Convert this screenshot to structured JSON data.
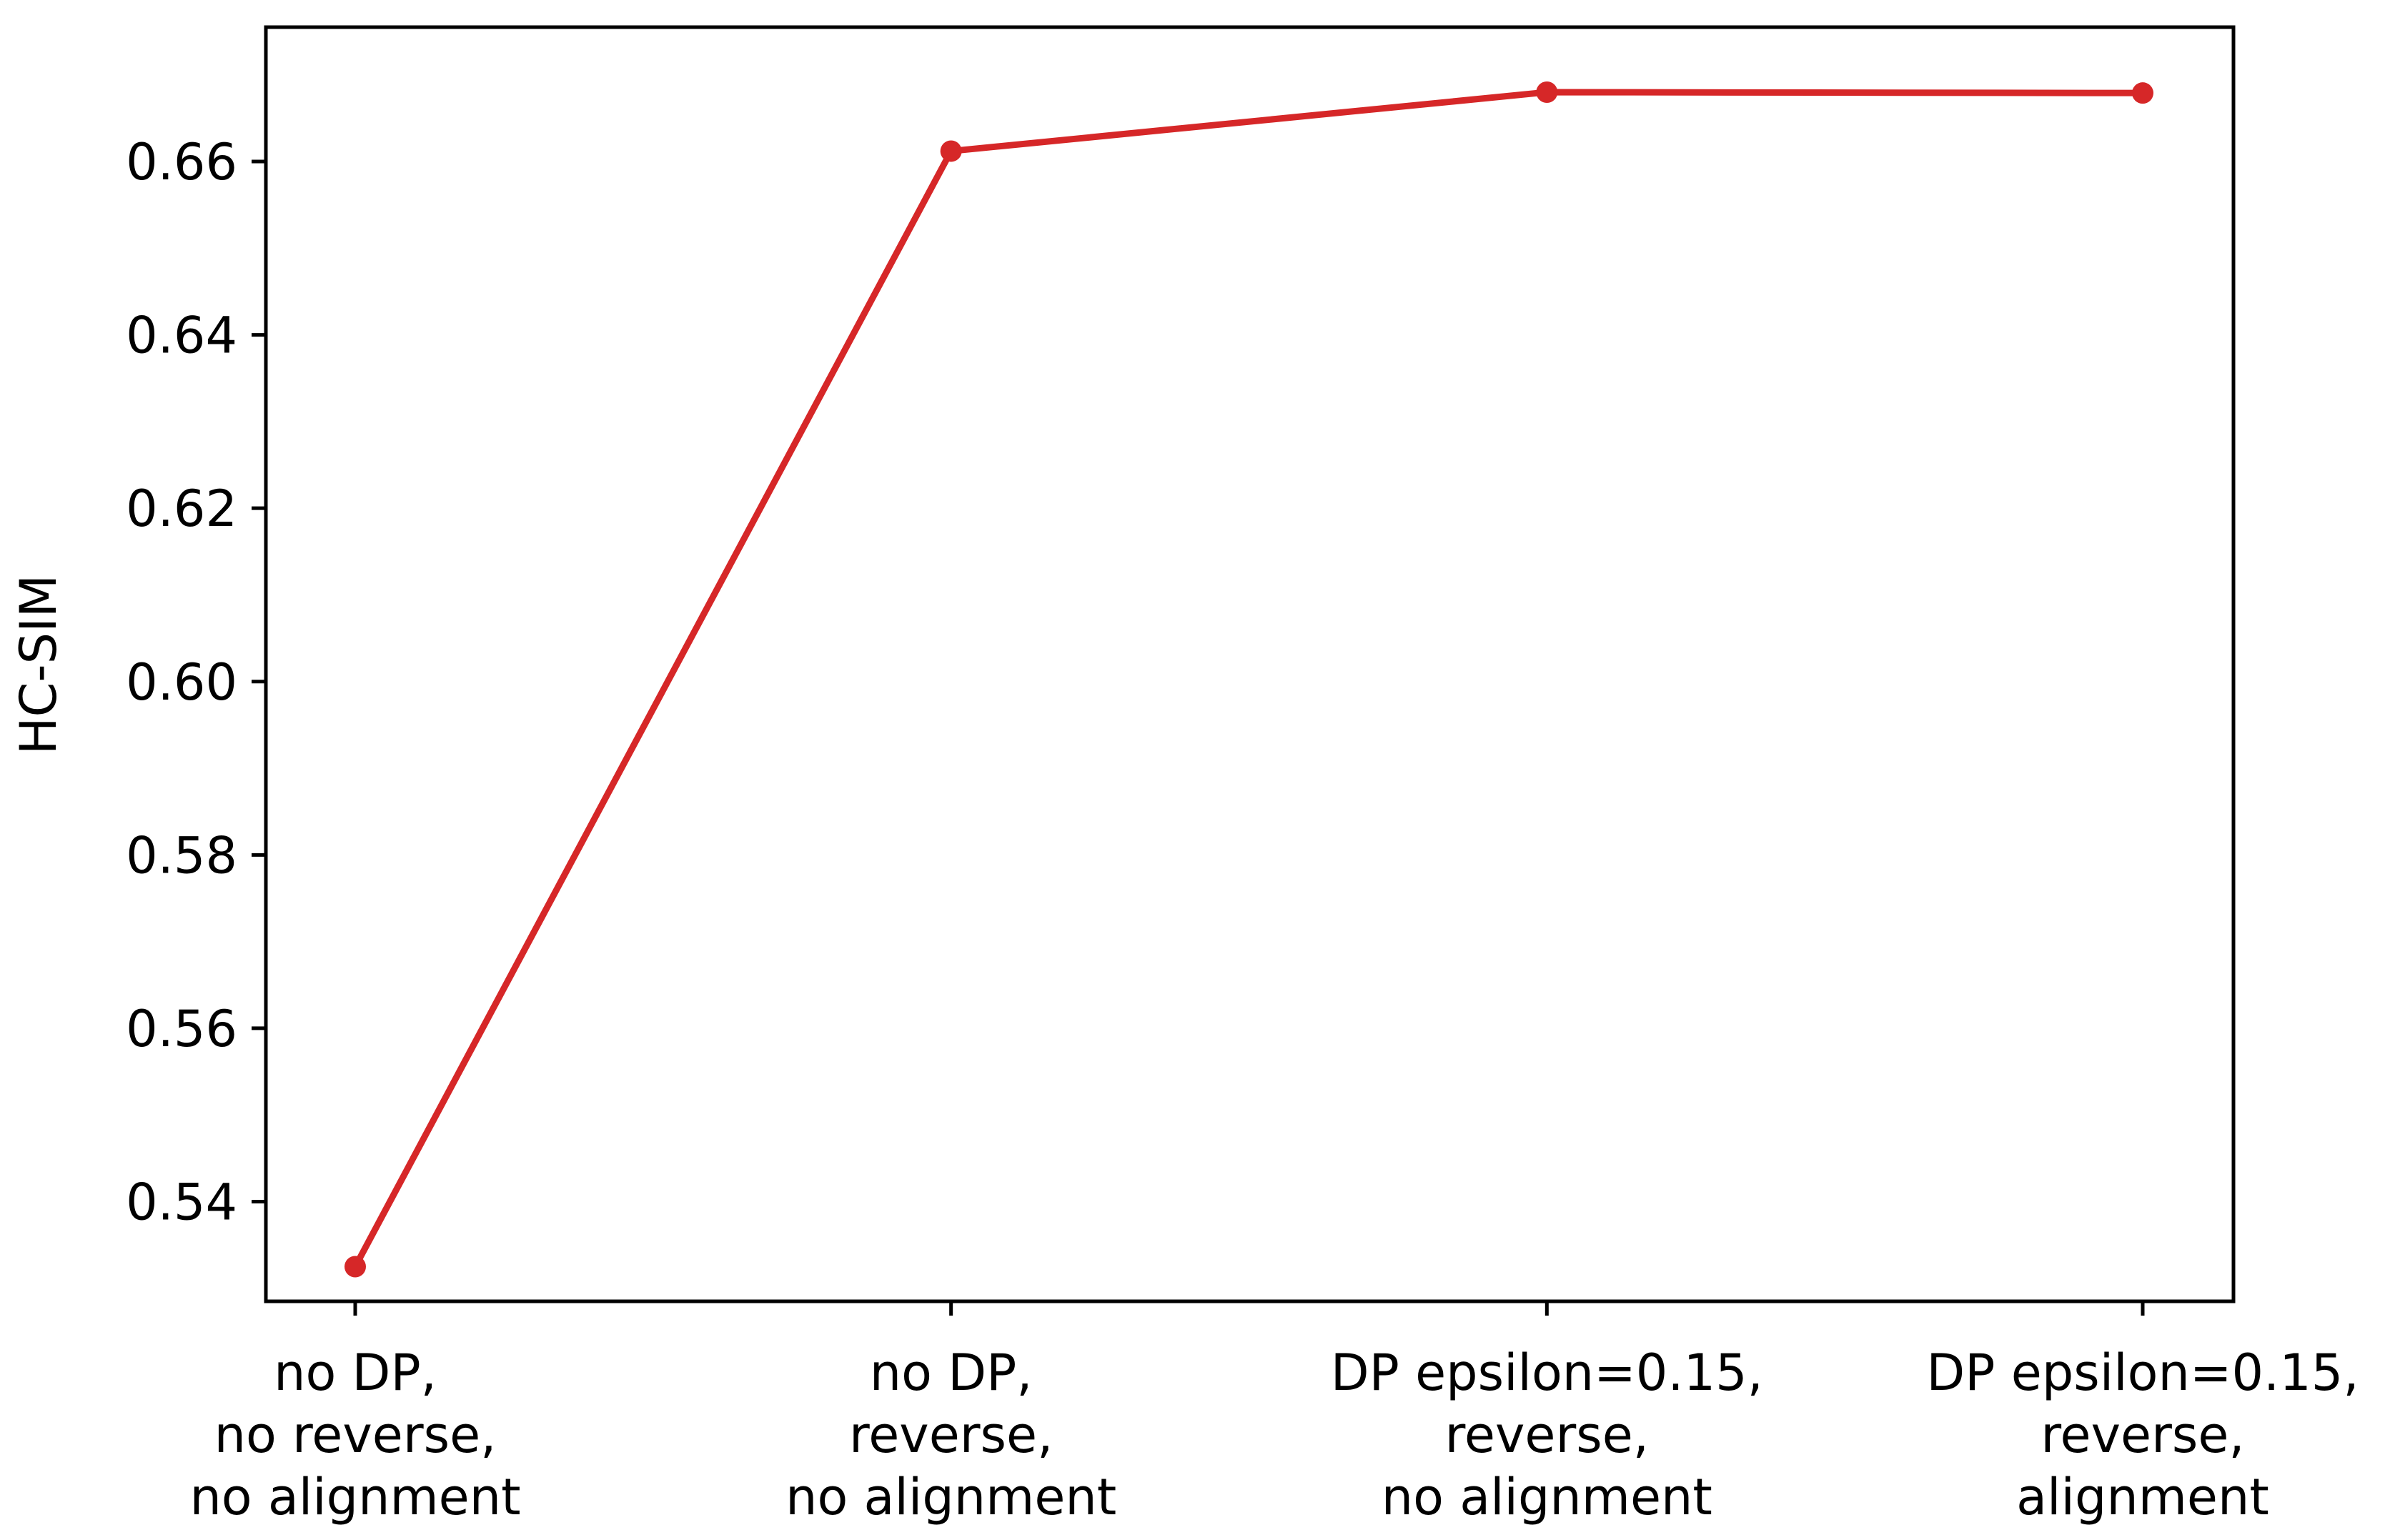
{
  "chart_data": {
    "type": "line",
    "ylabel": "HC-SIM",
    "categories": [
      [
        "no DP,",
        "no reverse,",
        "no alignment"
      ],
      [
        "no DP,",
        "reverse,",
        "no alignment"
      ],
      [
        "DP epsilon=0.15,",
        "reverse,",
        "no alignment"
      ],
      [
        "DP epsilon=0.15,",
        "reverse,",
        "alignment"
      ]
    ],
    "series": [
      {
        "values": [
          0.5325,
          0.6612,
          0.668,
          0.6679
        ],
        "color": "#d62728"
      }
    ],
    "ylim": [
      0.5285,
      0.6755
    ],
    "yticks": [
      0.54,
      0.56,
      0.58,
      0.6,
      0.62,
      0.64,
      0.66
    ],
    "ytick_labels": [
      "0.54",
      "0.56",
      "0.58",
      "0.60",
      "0.62",
      "0.64",
      "0.66"
    ],
    "grid": false,
    "legend": "none"
  }
}
